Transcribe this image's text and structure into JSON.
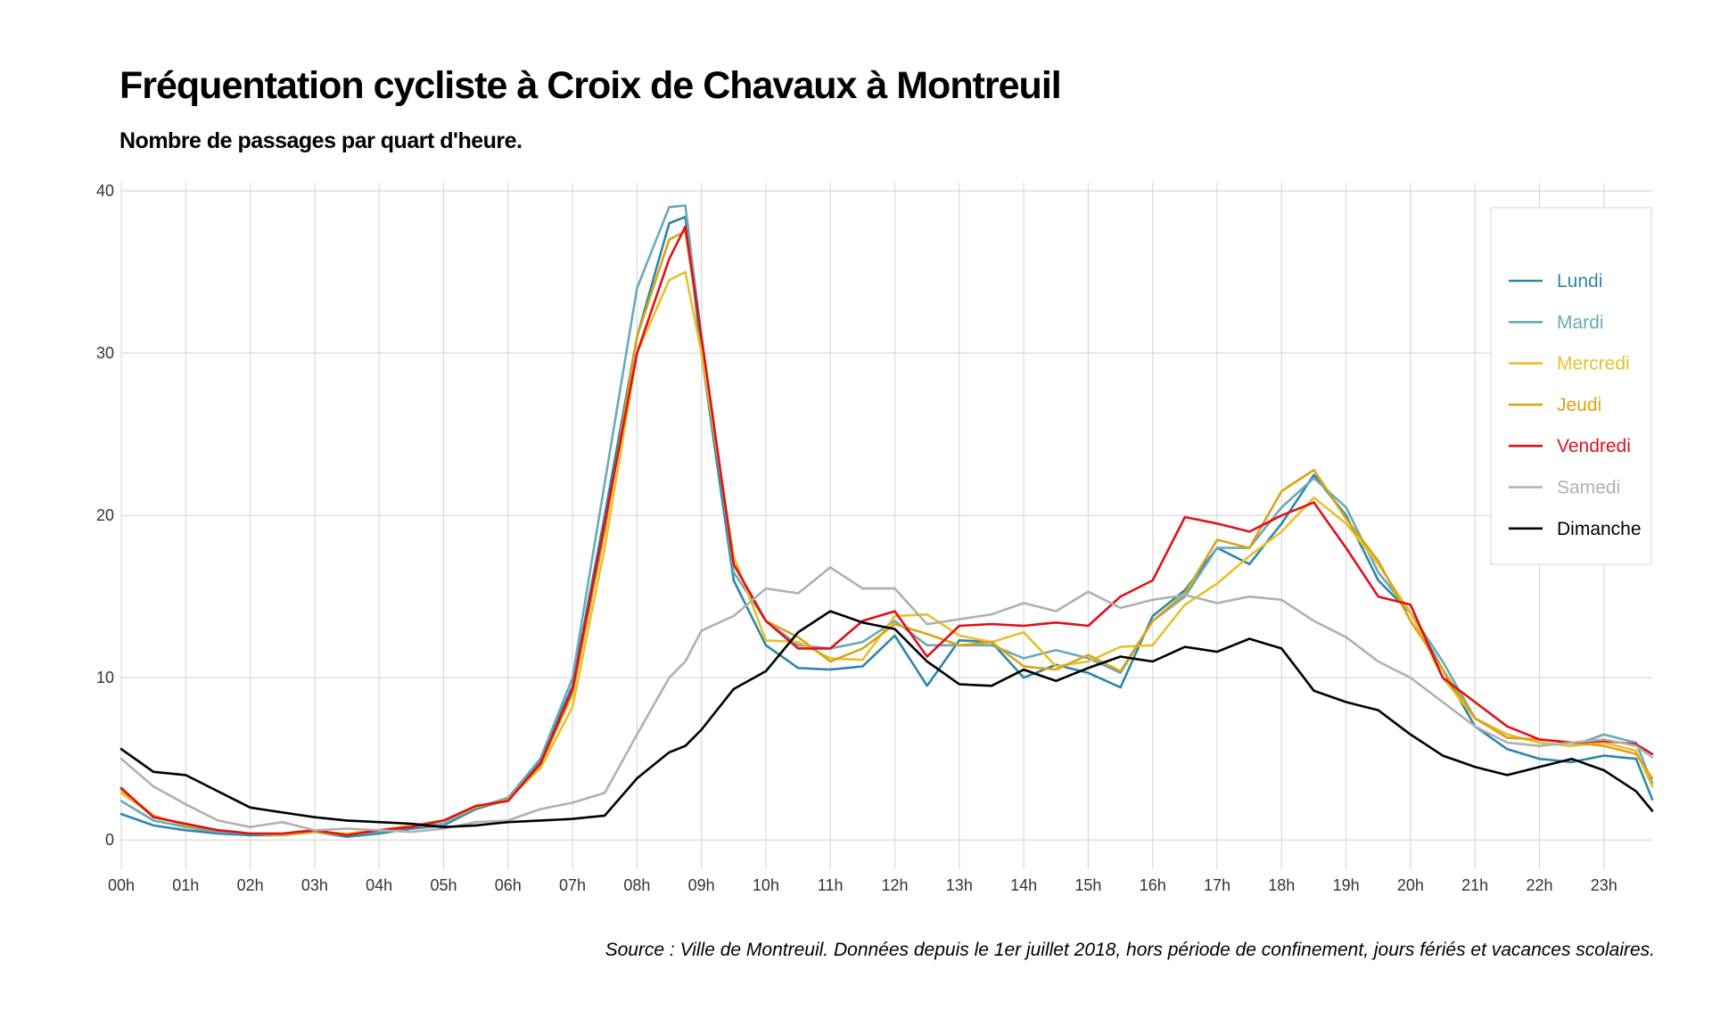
{
  "chart_data": {
    "type": "line",
    "title": "Fréquentation cycliste à Croix de Chavaux à Montreuil",
    "subtitle": "Nombre de passages par quart d'heure.",
    "source": "Source : Ville de Montreuil. Données depuis le 1er juillet 2018, hors période de confinement, jours fériés et vacances scolaires.",
    "x_ticks": [
      "00h",
      "01h",
      "02h",
      "03h",
      "04h",
      "05h",
      "06h",
      "07h",
      "08h",
      "09h",
      "10h",
      "11h",
      "12h",
      "13h",
      "14h",
      "15h",
      "16h",
      "17h",
      "18h",
      "19h",
      "20h",
      "21h",
      "22h",
      "23h"
    ],
    "y_ticks": [
      0,
      10,
      20,
      30,
      40
    ],
    "xlim": [
      0,
      23.75
    ],
    "ylim": [
      -1.8,
      40.5
    ],
    "grid": true,
    "legend_position": "right",
    "anchors": [
      0,
      0.5,
      1,
      1.5,
      2,
      2.5,
      3,
      3.5,
      4,
      4.5,
      5,
      5.5,
      6,
      6.5,
      7,
      7.5,
      8,
      8.5,
      8.75,
      9,
      9.5,
      10,
      10.5,
      11,
      11.5,
      12,
      12.5,
      13,
      13.5,
      14,
      14.5,
      15,
      15.5,
      16,
      16.5,
      17,
      17.5,
      18,
      18.5,
      19,
      19.5,
      20,
      20.5,
      21,
      21.5,
      22,
      22.5,
      23,
      23.5,
      23.75
    ],
    "series": [
      {
        "name": "Lundi",
        "color": "#2f86a8",
        "values": [
          1.6,
          0.9,
          0.6,
          0.4,
          0.3,
          0.3,
          0.5,
          0.2,
          0.4,
          0.7,
          0.9,
          1.9,
          2.5,
          4.9,
          9.5,
          20.0,
          31.0,
          38.0,
          38.4,
          30.0,
          16.0,
          12.0,
          10.6,
          10.5,
          10.7,
          12.6,
          9.5,
          12.3,
          12.2,
          10.0,
          10.8,
          10.3,
          9.4,
          13.8,
          15.4,
          18.0,
          17.0,
          19.5,
          22.5,
          20.0,
          16.0,
          14.0,
          10.5,
          7.0,
          5.6,
          5.0,
          4.8,
          5.2,
          5.0,
          2.5
        ]
      },
      {
        "name": "Mardi",
        "color": "#6aaab5",
        "values": [
          2.4,
          1.2,
          0.8,
          0.5,
          0.4,
          0.4,
          0.5,
          0.3,
          0.5,
          0.8,
          1.0,
          2.0,
          2.6,
          5.0,
          10.0,
          22.0,
          34.0,
          39.0,
          39.1,
          31.0,
          16.5,
          13.5,
          12.0,
          11.8,
          12.2,
          13.5,
          12.0,
          12.0,
          12.0,
          11.2,
          11.7,
          11.2,
          10.3,
          13.5,
          15.0,
          18.0,
          18.0,
          20.5,
          22.3,
          20.5,
          16.5,
          14.0,
          11.0,
          7.5,
          6.5,
          6.0,
          5.8,
          6.5,
          6.0,
          3.5
        ]
      },
      {
        "name": "Mercredi",
        "color": "#e8c02a",
        "values": [
          2.9,
          1.5,
          0.9,
          0.6,
          0.4,
          0.3,
          0.5,
          0.4,
          0.6,
          0.9,
          1.2,
          2.0,
          2.5,
          4.4,
          8.2,
          18.0,
          30.0,
          34.5,
          35.0,
          30.0,
          17.5,
          12.3,
          12.2,
          11.2,
          11.1,
          13.8,
          13.9,
          12.6,
          12.2,
          12.8,
          10.7,
          11.0,
          11.9,
          12.0,
          14.5,
          15.8,
          17.5,
          19.0,
          21.1,
          19.5,
          17.0,
          14.0,
          10.0,
          7.5,
          6.5,
          6.0,
          5.8,
          6.0,
          5.5,
          3.3
        ]
      },
      {
        "name": "Jeudi",
        "color": "#d9a416",
        "values": [
          3.1,
          1.5,
          0.9,
          0.6,
          0.4,
          0.3,
          0.5,
          0.3,
          0.6,
          0.9,
          1.2,
          2.0,
          2.5,
          4.6,
          9.0,
          19.0,
          31.0,
          37.0,
          37.5,
          31.0,
          17.0,
          13.5,
          12.5,
          11.0,
          11.8,
          13.3,
          12.7,
          12.0,
          12.2,
          10.7,
          10.5,
          11.4,
          10.4,
          13.5,
          15.2,
          18.5,
          18.0,
          21.5,
          22.8,
          19.8,
          17.2,
          13.5,
          10.5,
          7.5,
          6.3,
          6.2,
          6.0,
          5.8,
          5.3,
          3.8
        ]
      },
      {
        "name": "Vendredi",
        "color": "#e0101a",
        "values": [
          3.2,
          1.4,
          1.0,
          0.6,
          0.4,
          0.4,
          0.6,
          0.3,
          0.6,
          0.8,
          1.2,
          2.1,
          2.4,
          4.7,
          9.3,
          19.5,
          30.0,
          35.8,
          37.8,
          31.0,
          17.0,
          13.5,
          11.8,
          11.8,
          13.5,
          14.1,
          11.3,
          13.2,
          13.3,
          13.2,
          13.4,
          13.2,
          15.0,
          16.0,
          19.9,
          19.5,
          19.0,
          20.0,
          20.8,
          18.0,
          15.0,
          14.5,
          10.0,
          8.5,
          7.0,
          6.2,
          6.0,
          6.1,
          5.9,
          5.3
        ]
      },
      {
        "name": "Samedi",
        "color": "#b0b0b0",
        "values": [
          5.0,
          3.3,
          2.2,
          1.2,
          0.8,
          1.1,
          0.6,
          0.7,
          0.6,
          0.5,
          0.7,
          1.1,
          1.2,
          1.9,
          2.3,
          2.9,
          6.5,
          10.0,
          11.0,
          12.9,
          13.8,
          15.5,
          15.2,
          16.8,
          15.5,
          15.5,
          13.3,
          13.6,
          13.9,
          14.6,
          14.1,
          15.3,
          14.3,
          14.8,
          15.1,
          14.6,
          15.0,
          14.8,
          13.5,
          12.5,
          11.0,
          10.0,
          8.5,
          7.0,
          6.0,
          5.8,
          6.0,
          6.2,
          5.8,
          5.1
        ]
      },
      {
        "name": "Dimanche",
        "color": "#000000",
        "values": [
          5.6,
          4.2,
          4.0,
          3.0,
          2.0,
          1.7,
          1.4,
          1.2,
          1.1,
          1.0,
          0.8,
          0.9,
          1.1,
          1.2,
          1.3,
          1.5,
          3.8,
          5.4,
          5.8,
          6.8,
          9.3,
          10.4,
          12.8,
          14.1,
          13.4,
          13.0,
          11.0,
          9.6,
          9.5,
          10.5,
          9.8,
          10.6,
          11.3,
          11.0,
          11.9,
          11.6,
          12.4,
          11.8,
          9.2,
          8.5,
          8.0,
          6.5,
          5.2,
          4.5,
          4.0,
          4.5,
          5.0,
          4.3,
          3.0,
          1.8
        ]
      }
    ]
  }
}
